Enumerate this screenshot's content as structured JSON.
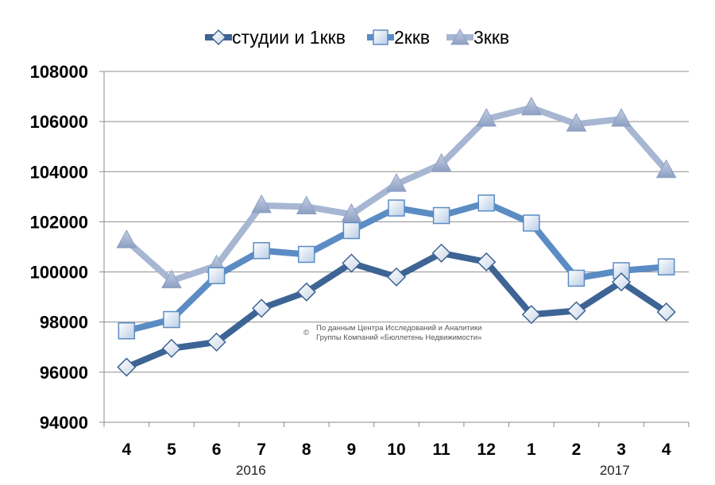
{
  "chart_data": {
    "type": "line",
    "categories": [
      "4",
      "5",
      "6",
      "7",
      "8",
      "9",
      "10",
      "11",
      "12",
      "1",
      "2",
      "3",
      "4"
    ],
    "year_labels": [
      "2016",
      "2017"
    ],
    "ylim": [
      94000,
      108000
    ],
    "yticks": [
      94000,
      96000,
      98000,
      100000,
      102000,
      104000,
      106000,
      108000
    ],
    "ytick_labels": [
      "94000",
      "96000",
      "98000",
      "100000",
      "102000",
      "104000",
      "106000",
      "108000"
    ],
    "grid": true,
    "legend_position": "top",
    "series": [
      {
        "name": "студии и 1ккв",
        "color": "#3d6494",
        "marker": "diamond",
        "values": [
          96200,
          96950,
          97200,
          98550,
          99200,
          100350,
          99800,
          100750,
          100400,
          98300,
          98450,
          99600,
          98400
        ]
      },
      {
        "name": "2ккв",
        "color": "#5b8cc4",
        "marker": "square",
        "values": [
          97650,
          98100,
          99850,
          100850,
          100700,
          101650,
          102550,
          102250,
          102750,
          101950,
          99750,
          100050,
          100200
        ]
      },
      {
        "name": "3ккв",
        "color": "#a7b6d2",
        "marker": "triangle",
        "values": [
          101250,
          99650,
          100250,
          102650,
          102600,
          102300,
          103500,
          104300,
          106100,
          106550,
          105900,
          106100,
          104050
        ]
      }
    ],
    "annotation": {
      "symbol": "©",
      "line1": "По данным Центра Исследований и Аналитики",
      "line2": "Группы Компаний «Бюллетень Недвижимости»"
    }
  }
}
